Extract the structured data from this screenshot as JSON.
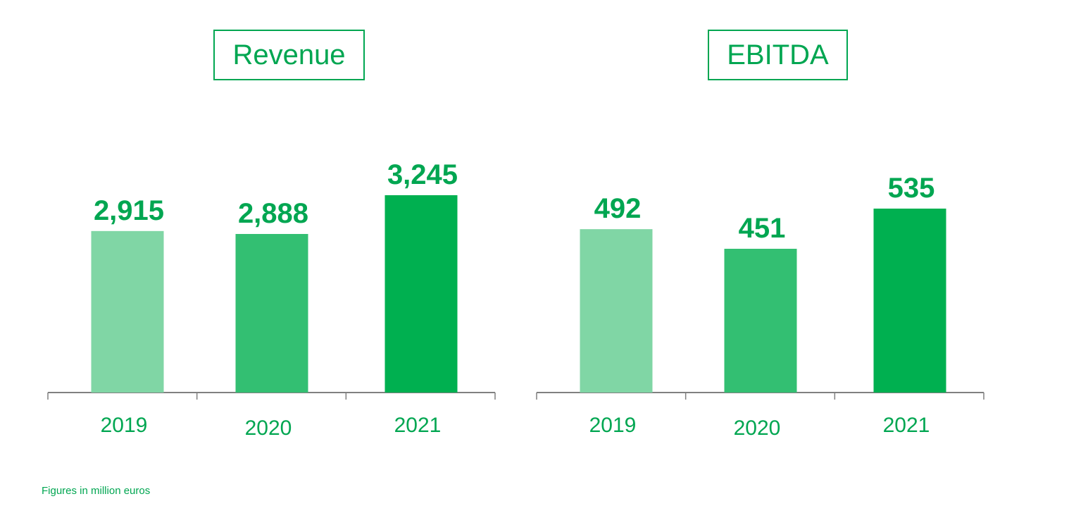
{
  "colors": {
    "accent": "#00a651",
    "bar_2019": "#80d6a5",
    "bar_2020": "#33bf72",
    "bar_2021": "#00b050",
    "axis": "#808080"
  },
  "footnote": "Figures in million euros",
  "chart_data": [
    {
      "type": "bar",
      "title": "Revenue",
      "categories": [
        "2019",
        "2020",
        "2021"
      ],
      "values": [
        2915,
        2888,
        3245
      ],
      "value_labels": [
        "2,915",
        "2,888",
        "3,245"
      ],
      "xlabel": "",
      "ylabel": "",
      "grid": false,
      "legend": "none"
    },
    {
      "type": "bar",
      "title": "EBITDA",
      "categories": [
        "2019",
        "2020",
        "2021"
      ],
      "values": [
        492,
        451,
        535
      ],
      "value_labels": [
        "492",
        "451",
        "535"
      ],
      "xlabel": "",
      "ylabel": "",
      "grid": false,
      "legend": "none"
    }
  ]
}
